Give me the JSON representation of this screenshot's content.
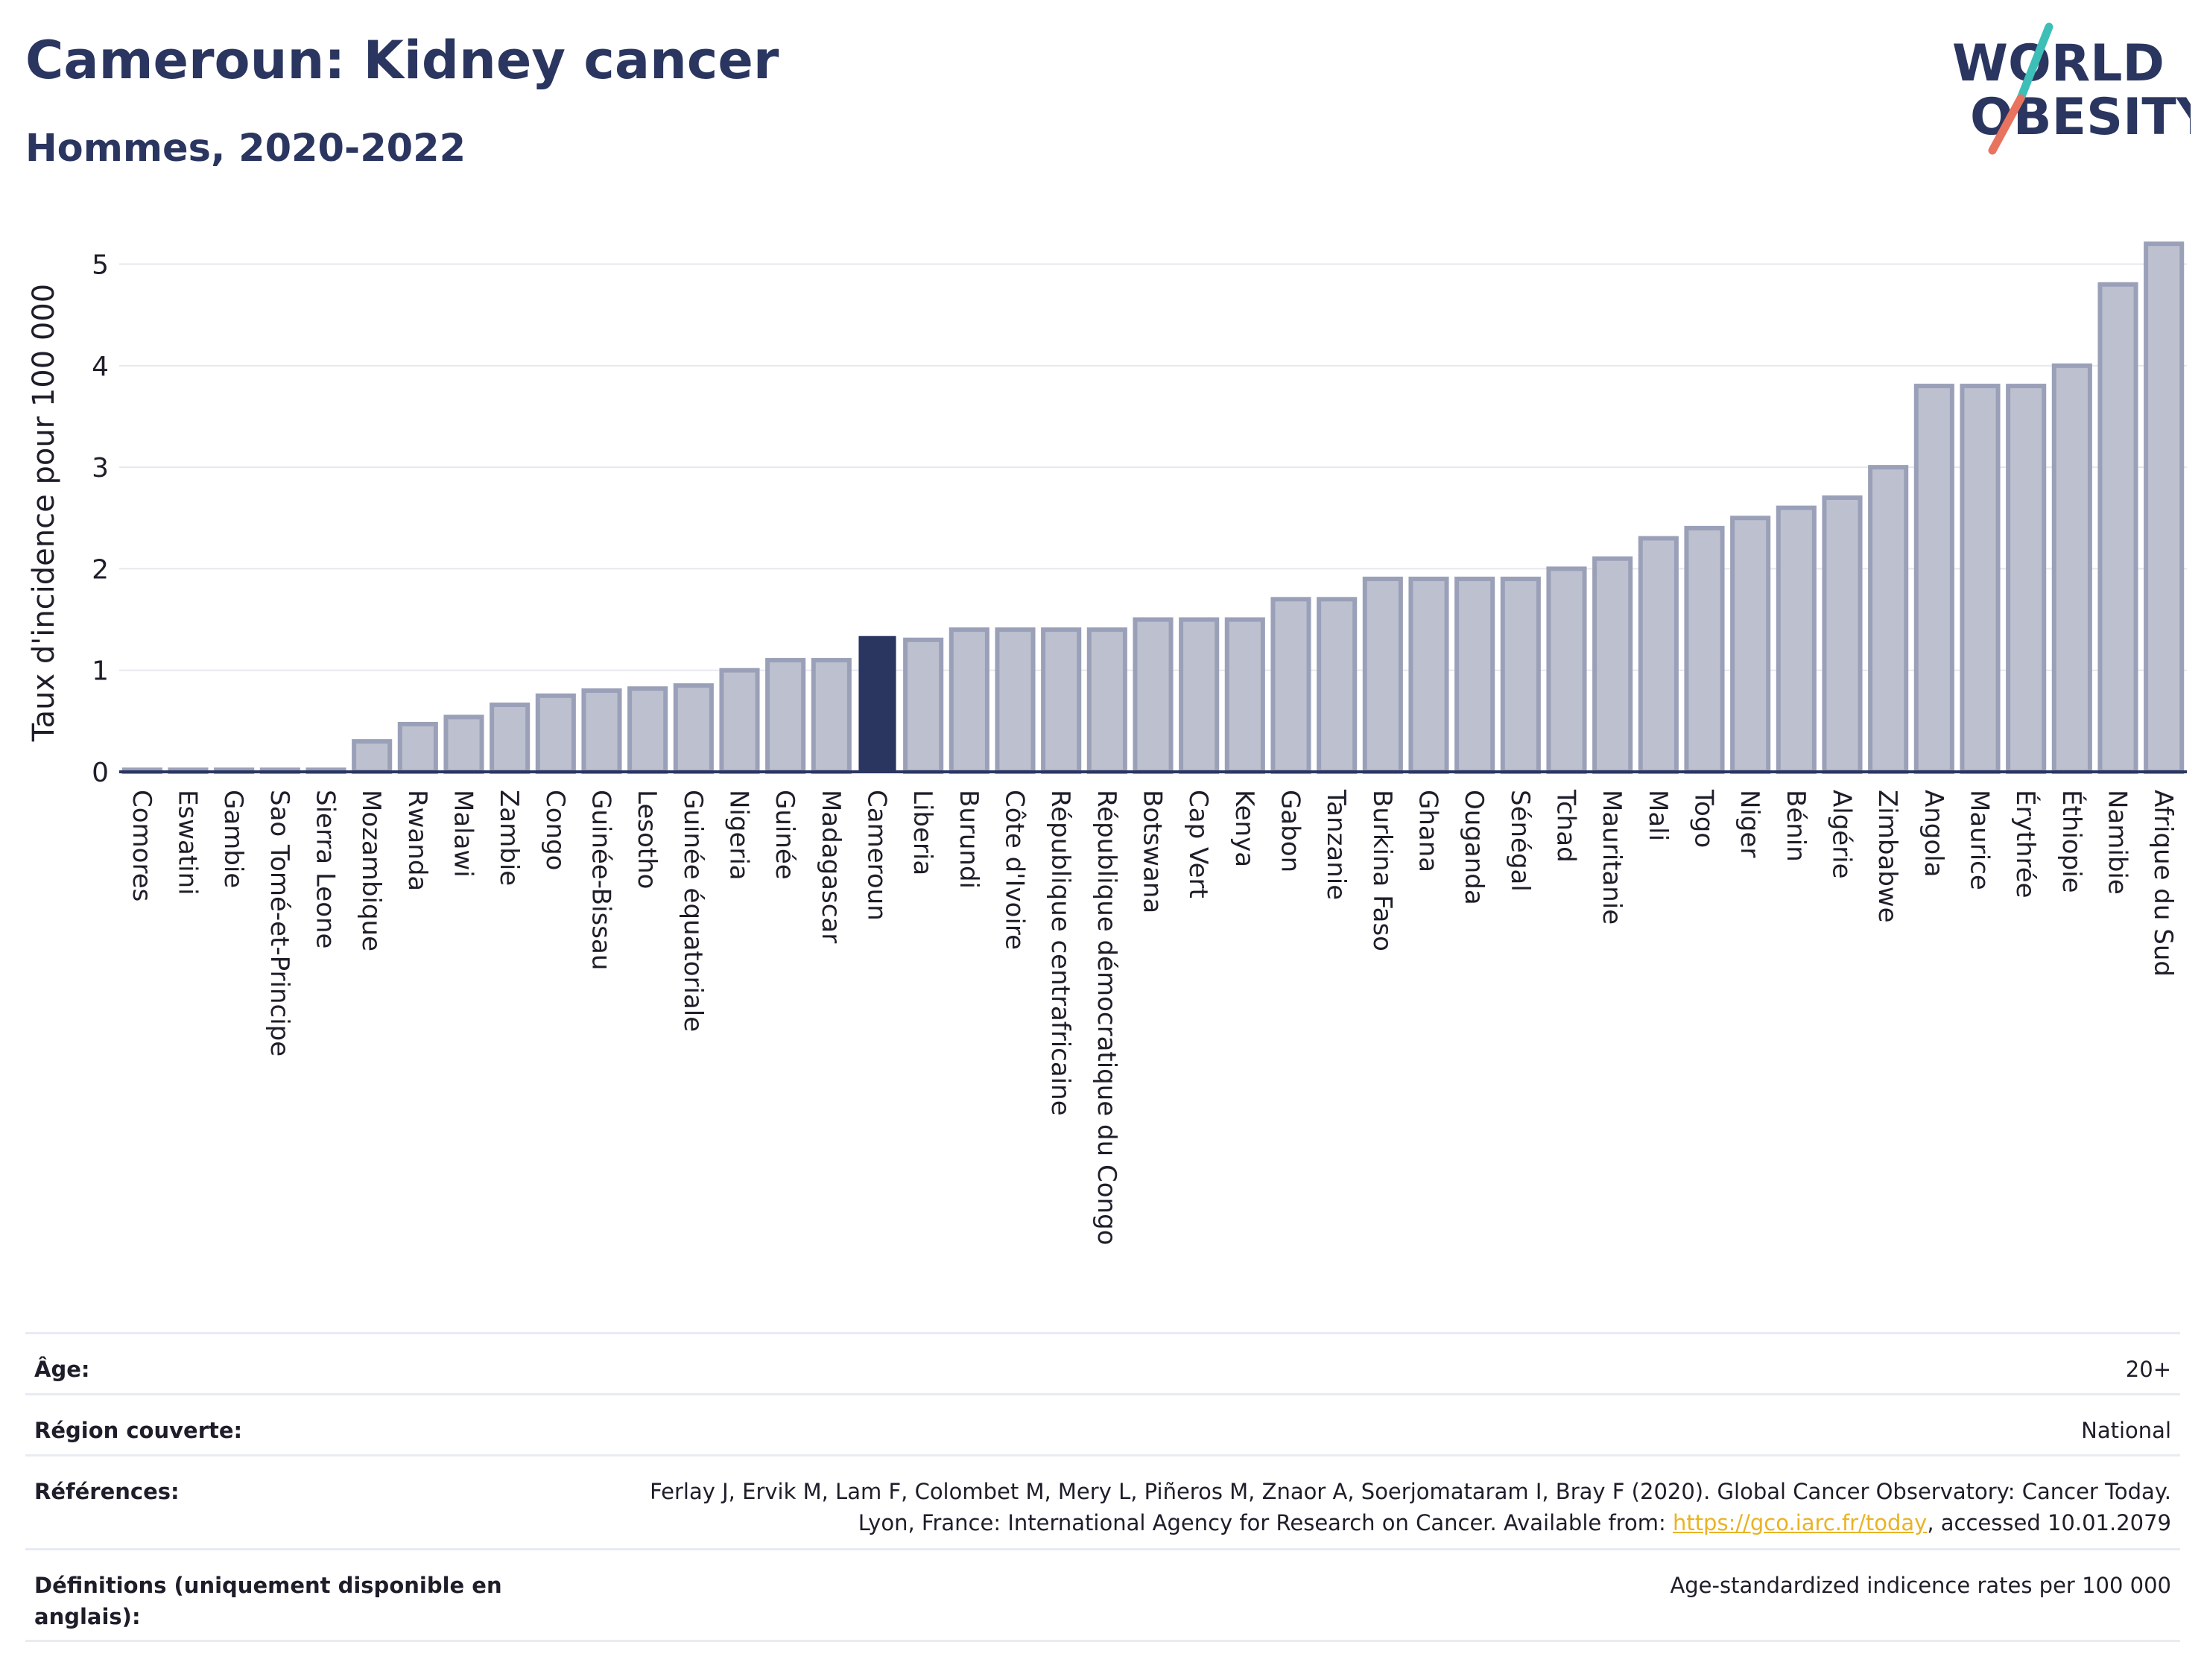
{
  "header": {
    "title": "Cameroun: Kidney cancer",
    "subtitle": "Hommes, 2020-2022"
  },
  "logo": {
    "line1": "WORLD",
    "line2": "OBESITY",
    "colors": {
      "text": "#2a3560",
      "slash_top": "#3dbfb8",
      "slash_bottom": "#e8735f"
    }
  },
  "colors": {
    "bar_fill": "#bdc1cf",
    "bar_stroke": "#9aa0b8",
    "highlight": "#2a3560",
    "grid": "#e6e8ee",
    "axis": "#2a3560"
  },
  "chart_data": {
    "type": "bar",
    "ylabel": "Taux d'incidence pour 100 000",
    "ylim": [
      0,
      5.4
    ],
    "yticks": [
      0,
      1,
      2,
      3,
      4,
      5
    ],
    "grid": true,
    "highlight_category": "Cameroun",
    "categories": [
      "Comores",
      "Eswatini",
      "Gambie",
      "Sao Tomé-et-Principe",
      "Sierra Leone",
      "Mozambique",
      "Rwanda",
      "Malawi",
      "Zambie",
      "Congo",
      "Guinée-Bissau",
      "Lesotho",
      "Guinée équatoriale",
      "Nigeria",
      "Guinée",
      "Madagascar",
      "Cameroun",
      "Liberia",
      "Burundi",
      "Côte d'Ivoire",
      "République centrafricaine",
      "République démocratique du Congo",
      "Botswana",
      "Cap Vert",
      "Kenya",
      "Gabon",
      "Tanzanie",
      "Burkina Faso",
      "Ghana",
      "Ouganda",
      "Sénégal",
      "Tchad",
      "Mauritanie",
      "Mali",
      "Togo",
      "Niger",
      "Bénin",
      "Algérie",
      "Zimbabwe",
      "Angola",
      "Maurice",
      "Érythrée",
      "Éthiopie",
      "Namibie",
      "Afrique du Sud"
    ],
    "values": [
      0.02,
      0.02,
      0.02,
      0.02,
      0.02,
      0.3,
      0.47,
      0.54,
      0.66,
      0.75,
      0.8,
      0.82,
      0.85,
      1.0,
      1.1,
      1.1,
      1.33,
      1.3,
      1.4,
      1.4,
      1.4,
      1.4,
      1.5,
      1.5,
      1.5,
      1.7,
      1.7,
      1.9,
      1.9,
      1.9,
      1.9,
      2.0,
      2.1,
      2.3,
      2.4,
      2.5,
      2.6,
      2.7,
      3.0,
      3.8,
      3.8,
      3.8,
      4.0,
      4.8,
      5.2
    ]
  },
  "meta": [
    {
      "key": "Âge:",
      "value": "20+"
    },
    {
      "key": "Région couverte:",
      "value": "National"
    },
    {
      "key": "Références:",
      "value_pre": "Ferlay J, Ervik M, Lam F, Colombet M, Mery L, Piñeros M, Znaor A, Soerjomataram I, Bray F (2020). Global Cancer Observatory: Cancer Today. Lyon, France: International Agency for Research on Cancer. Available from: ",
      "link": "https://gco.iarc.fr/today",
      "value_post": ", accessed 10.01.2079"
    },
    {
      "key": "Définitions (uniquement disponible en anglais):",
      "value": "Age-standardized indicence rates per 100 000"
    }
  ]
}
